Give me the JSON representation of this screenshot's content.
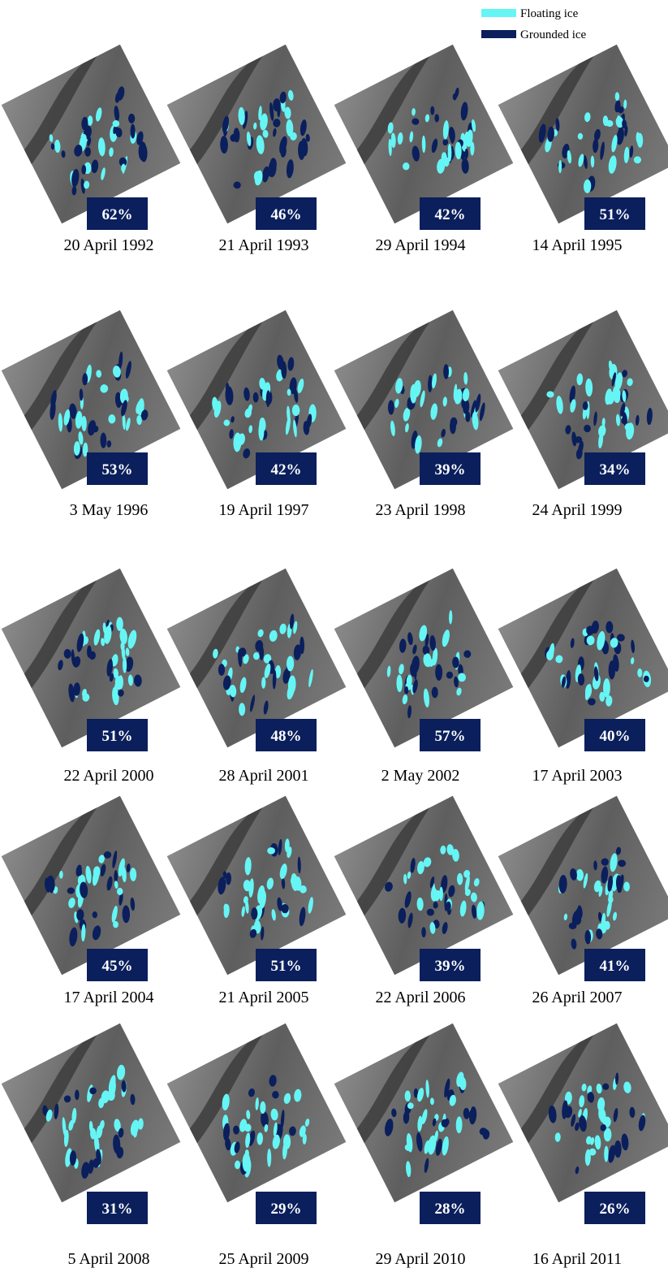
{
  "legend": [
    {
      "label": "Floating ice",
      "color": "#66f5f5"
    },
    {
      "label": "Grounded ice",
      "color": "#0a1f5c"
    }
  ],
  "panels": [
    {
      "date": "20 April 1992",
      "percent": "62%"
    },
    {
      "date": "21 April 1993",
      "percent": "46%"
    },
    {
      "date": "29 April 1994",
      "percent": "42%"
    },
    {
      "date": "14 April 1995",
      "percent": "51%"
    },
    {
      "date": "3 May 1996",
      "percent": "53%"
    },
    {
      "date": "19 April 1997",
      "percent": "42%"
    },
    {
      "date": "23 April 1998",
      "percent": "39%"
    },
    {
      "date": "24 April 1999",
      "percent": "34%"
    },
    {
      "date": "22 April 2000",
      "percent": "51%"
    },
    {
      "date": "28 April 2001",
      "percent": "48%"
    },
    {
      "date": "2 May 2002",
      "percent": "57%"
    },
    {
      "date": "17 April 2003",
      "percent": "40%"
    },
    {
      "date": "17 April 2004",
      "percent": "45%"
    },
    {
      "date": "21 April 2005",
      "percent": "51%"
    },
    {
      "date": "22 April 2006",
      "percent": "39%"
    },
    {
      "date": "26 April 2007",
      "percent": "41%"
    },
    {
      "date": "5 April 2008",
      "percent": "31%"
    },
    {
      "date": "25 April 2009",
      "percent": "29%"
    },
    {
      "date": "29 April 2010",
      "percent": "28%"
    },
    {
      "date": "16 April 2011",
      "percent": "26%"
    }
  ]
}
